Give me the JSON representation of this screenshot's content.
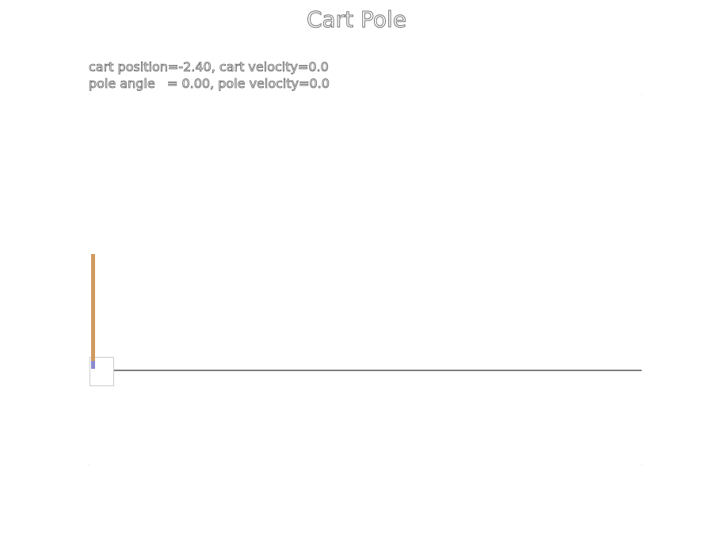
{
  "title": "Cart Pole",
  "status": [
    "cart position=-2.40, cart velocity=0.0",
    "pole angle   = 0.00, pole velocity=0.0"
  ]
}
